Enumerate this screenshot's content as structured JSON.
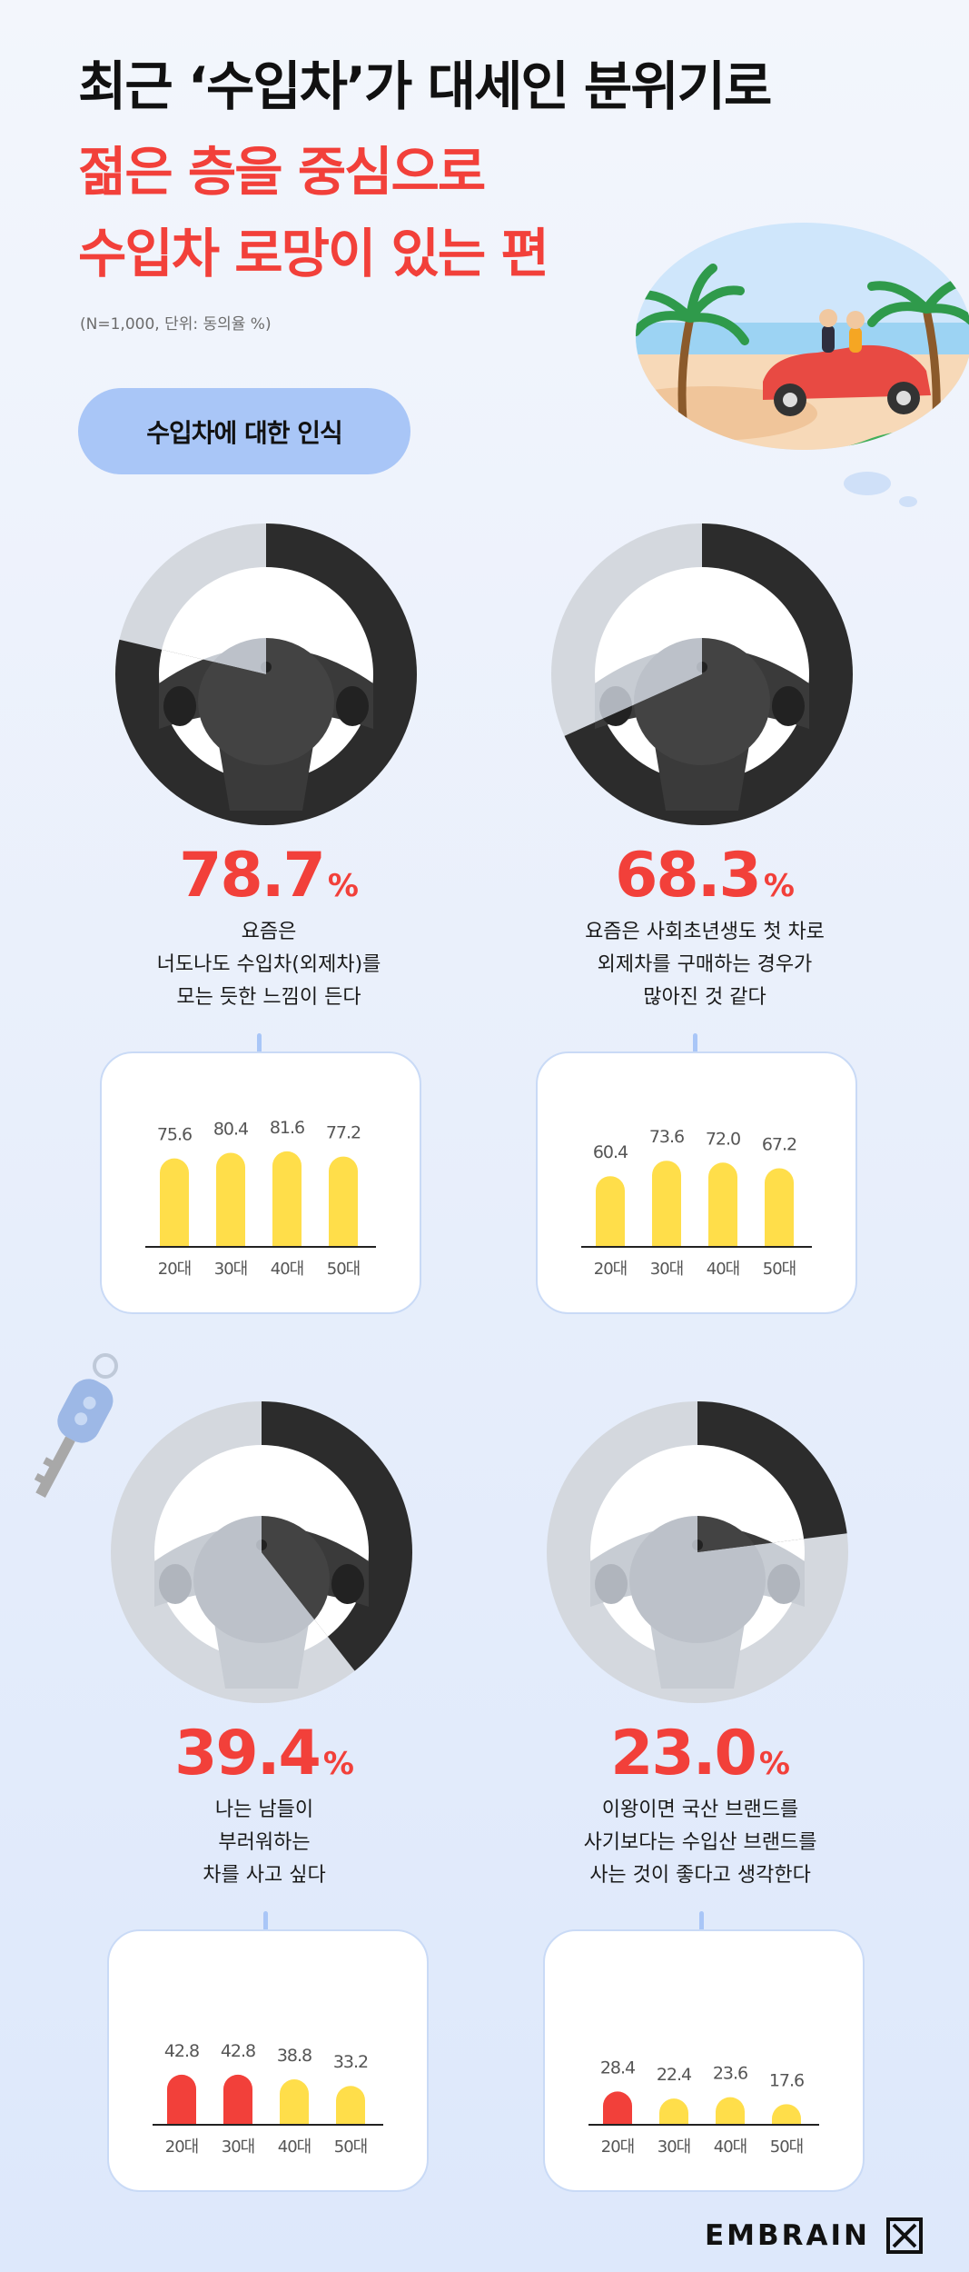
{
  "header": {
    "title_line1": "최근 ‘수입차’가 대세인 분위기로",
    "title_line2": "젊은 층을 중심으로",
    "title_line3": "수입차 로망이 있는 편",
    "note": "(N=1,000, 단위: 동의율 %)"
  },
  "section_label": "수입차에 대한 인식",
  "brand": "EMBRAIN",
  "colors": {
    "accent": "#f2403a",
    "bar_yellow": "#ffde4a",
    "bar_red": "#f2403a",
    "pill": "#a9c6f7"
  },
  "panels": [
    {
      "pct": "78.7",
      "unit": "%",
      "desc": "요즘은\n너도나도 수입차(외제차)를\n모는 듯한 느낌이 든다"
    },
    {
      "pct": "68.3",
      "unit": "%",
      "desc": "요즘은 사회초년생도 첫 차로\n외제차를 구매하는 경우가\n많아진 것 같다"
    },
    {
      "pct": "39.4",
      "unit": "%",
      "desc": "나는 남들이\n부러워하는\n차를 사고 싶다"
    },
    {
      "pct": "23.0",
      "unit": "%",
      "desc": "이왕이면 국산 브랜드를\n사기보다는 수입산 브랜드를\n사는 것이 좋다고 생각한다"
    }
  ],
  "chart_data": [
    {
      "type": "bar",
      "categories": [
        "20대",
        "30대",
        "40대",
        "50대"
      ],
      "values": [
        75.6,
        80.4,
        81.6,
        77.2
      ],
      "value_labels": [
        "75.6",
        "80.4",
        "81.6",
        "77.2"
      ],
      "colors": [
        "#ffde4a",
        "#ffde4a",
        "#ffde4a",
        "#ffde4a"
      ],
      "ylim": [
        0,
        100
      ],
      "grid": false,
      "overall": 78.7
    },
    {
      "type": "bar",
      "categories": [
        "20대",
        "30대",
        "40대",
        "50대"
      ],
      "values": [
        60.4,
        73.6,
        72.0,
        67.2
      ],
      "value_labels": [
        "60.4",
        "73.6",
        "72.0",
        "67.2"
      ],
      "colors": [
        "#ffde4a",
        "#ffde4a",
        "#ffde4a",
        "#ffde4a"
      ],
      "ylim": [
        0,
        100
      ],
      "grid": false,
      "overall": 68.3
    },
    {
      "type": "bar",
      "categories": [
        "20대",
        "30대",
        "40대",
        "50대"
      ],
      "values": [
        42.8,
        42.8,
        38.8,
        33.2
      ],
      "value_labels": [
        "42.8",
        "42.8",
        "38.8",
        "33.2"
      ],
      "colors": [
        "#f2403a",
        "#f2403a",
        "#ffde4a",
        "#ffde4a"
      ],
      "ylim": [
        0,
        100
      ],
      "grid": false,
      "overall": 39.4
    },
    {
      "type": "bar",
      "categories": [
        "20대",
        "30대",
        "40대",
        "50대"
      ],
      "values": [
        28.4,
        22.4,
        23.6,
        17.6
      ],
      "value_labels": [
        "28.4",
        "22.4",
        "23.6",
        "17.6"
      ],
      "colors": [
        "#f2403a",
        "#ffde4a",
        "#ffde4a",
        "#ffde4a"
      ],
      "ylim": [
        0,
        100
      ],
      "grid": false,
      "overall": 23.0
    }
  ]
}
